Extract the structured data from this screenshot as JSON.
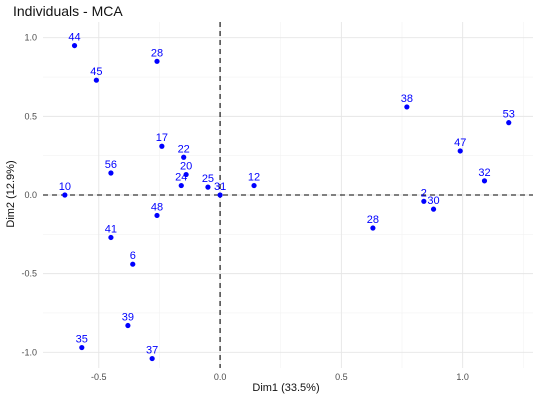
{
  "chart_data": {
    "type": "scatter",
    "title": "Individuals - MCA",
    "xlabel": "Dim1 (33.5%)",
    "ylabel": "Dim2 (12.9%)",
    "xlim": [
      -0.73,
      1.29
    ],
    "ylim": [
      -1.1,
      1.1
    ],
    "xticks": [
      -0.5,
      0.0,
      0.5,
      1.0
    ],
    "yticks": [
      -1.0,
      -0.5,
      0.0,
      0.5,
      1.0
    ],
    "xtick_labels": [
      "-0.5",
      "0.0",
      "0.5",
      "1.0"
    ],
    "ytick_labels": [
      "-1.0",
      "-0.5",
      "0.0",
      "0.5",
      "1.0"
    ],
    "reference_lines": {
      "x": 0,
      "y": 0,
      "style": "dashed"
    },
    "grid": true,
    "point_color": "#0000ff",
    "points": [
      {
        "label": "44",
        "x": -0.6,
        "y": 0.95
      },
      {
        "label": "45",
        "x": -0.51,
        "y": 0.73
      },
      {
        "label": "28",
        "x": -0.26,
        "y": 0.85
      },
      {
        "label": "38",
        "x": 0.77,
        "y": 0.56
      },
      {
        "label": "53",
        "x": 1.19,
        "y": 0.46
      },
      {
        "label": "47",
        "x": 0.99,
        "y": 0.28
      },
      {
        "label": "17",
        "x": -0.24,
        "y": 0.31
      },
      {
        "label": "22",
        "x": -0.15,
        "y": 0.24
      },
      {
        "label": "56",
        "x": -0.45,
        "y": 0.14
      },
      {
        "label": "20",
        "x": -0.14,
        "y": 0.13
      },
      {
        "label": "24",
        "x": -0.16,
        "y": 0.06
      },
      {
        "label": "25",
        "x": -0.05,
        "y": 0.05
      },
      {
        "label": "12",
        "x": 0.14,
        "y": 0.06
      },
      {
        "label": "31",
        "x": 0.0,
        "y": 0.0
      },
      {
        "label": "10",
        "x": -0.64,
        "y": 0.0
      },
      {
        "label": "32",
        "x": 1.09,
        "y": 0.09
      },
      {
        "label": "2",
        "x": 0.84,
        "y": -0.04
      },
      {
        "label": "30",
        "x": 0.88,
        "y": -0.09
      },
      {
        "label": "48",
        "x": -0.26,
        "y": -0.13
      },
      {
        "label": "28",
        "x": 0.63,
        "y": -0.21
      },
      {
        "label": "41",
        "x": -0.45,
        "y": -0.27
      },
      {
        "label": "6",
        "x": -0.36,
        "y": -0.44
      },
      {
        "label": "39",
        "x": -0.38,
        "y": -0.83
      },
      {
        "label": "35",
        "x": -0.57,
        "y": -0.97
      },
      {
        "label": "37",
        "x": -0.28,
        "y": -1.04
      }
    ]
  }
}
